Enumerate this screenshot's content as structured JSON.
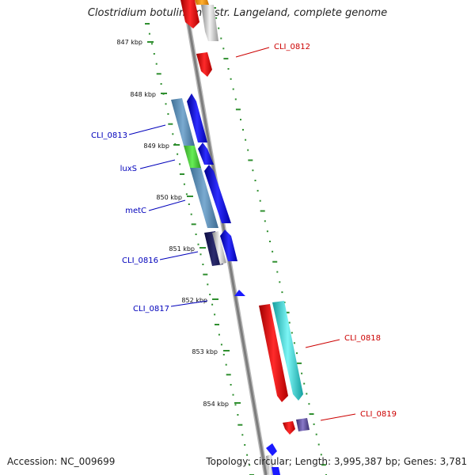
{
  "title": "Clostridium botulinum F str. Langeland, complete genome",
  "footer": {
    "accession": "Accession: NC_009699",
    "summary": "Topology: circular; Length: 3,995,387 bp; Genes: 3,781"
  },
  "colors": {
    "backbone": "#8a8a8a",
    "tick": "#2f8f2f",
    "forward_label": "#cc0000",
    "reverse_label": "#0000bb"
  },
  "ticks": [
    "847 kbp",
    "848 kbp",
    "849 kbp",
    "850 kbp",
    "851 kbp",
    "852 kbp",
    "853 kbp",
    "854 kbp"
  ],
  "gene_labels": {
    "forward": [
      "CLI_0812",
      "CLI_0818",
      "CLI_0819"
    ],
    "reverse": [
      "CLI_0813",
      "luxS",
      "metC",
      "CLI_0816",
      "CLI_0817"
    ]
  }
}
